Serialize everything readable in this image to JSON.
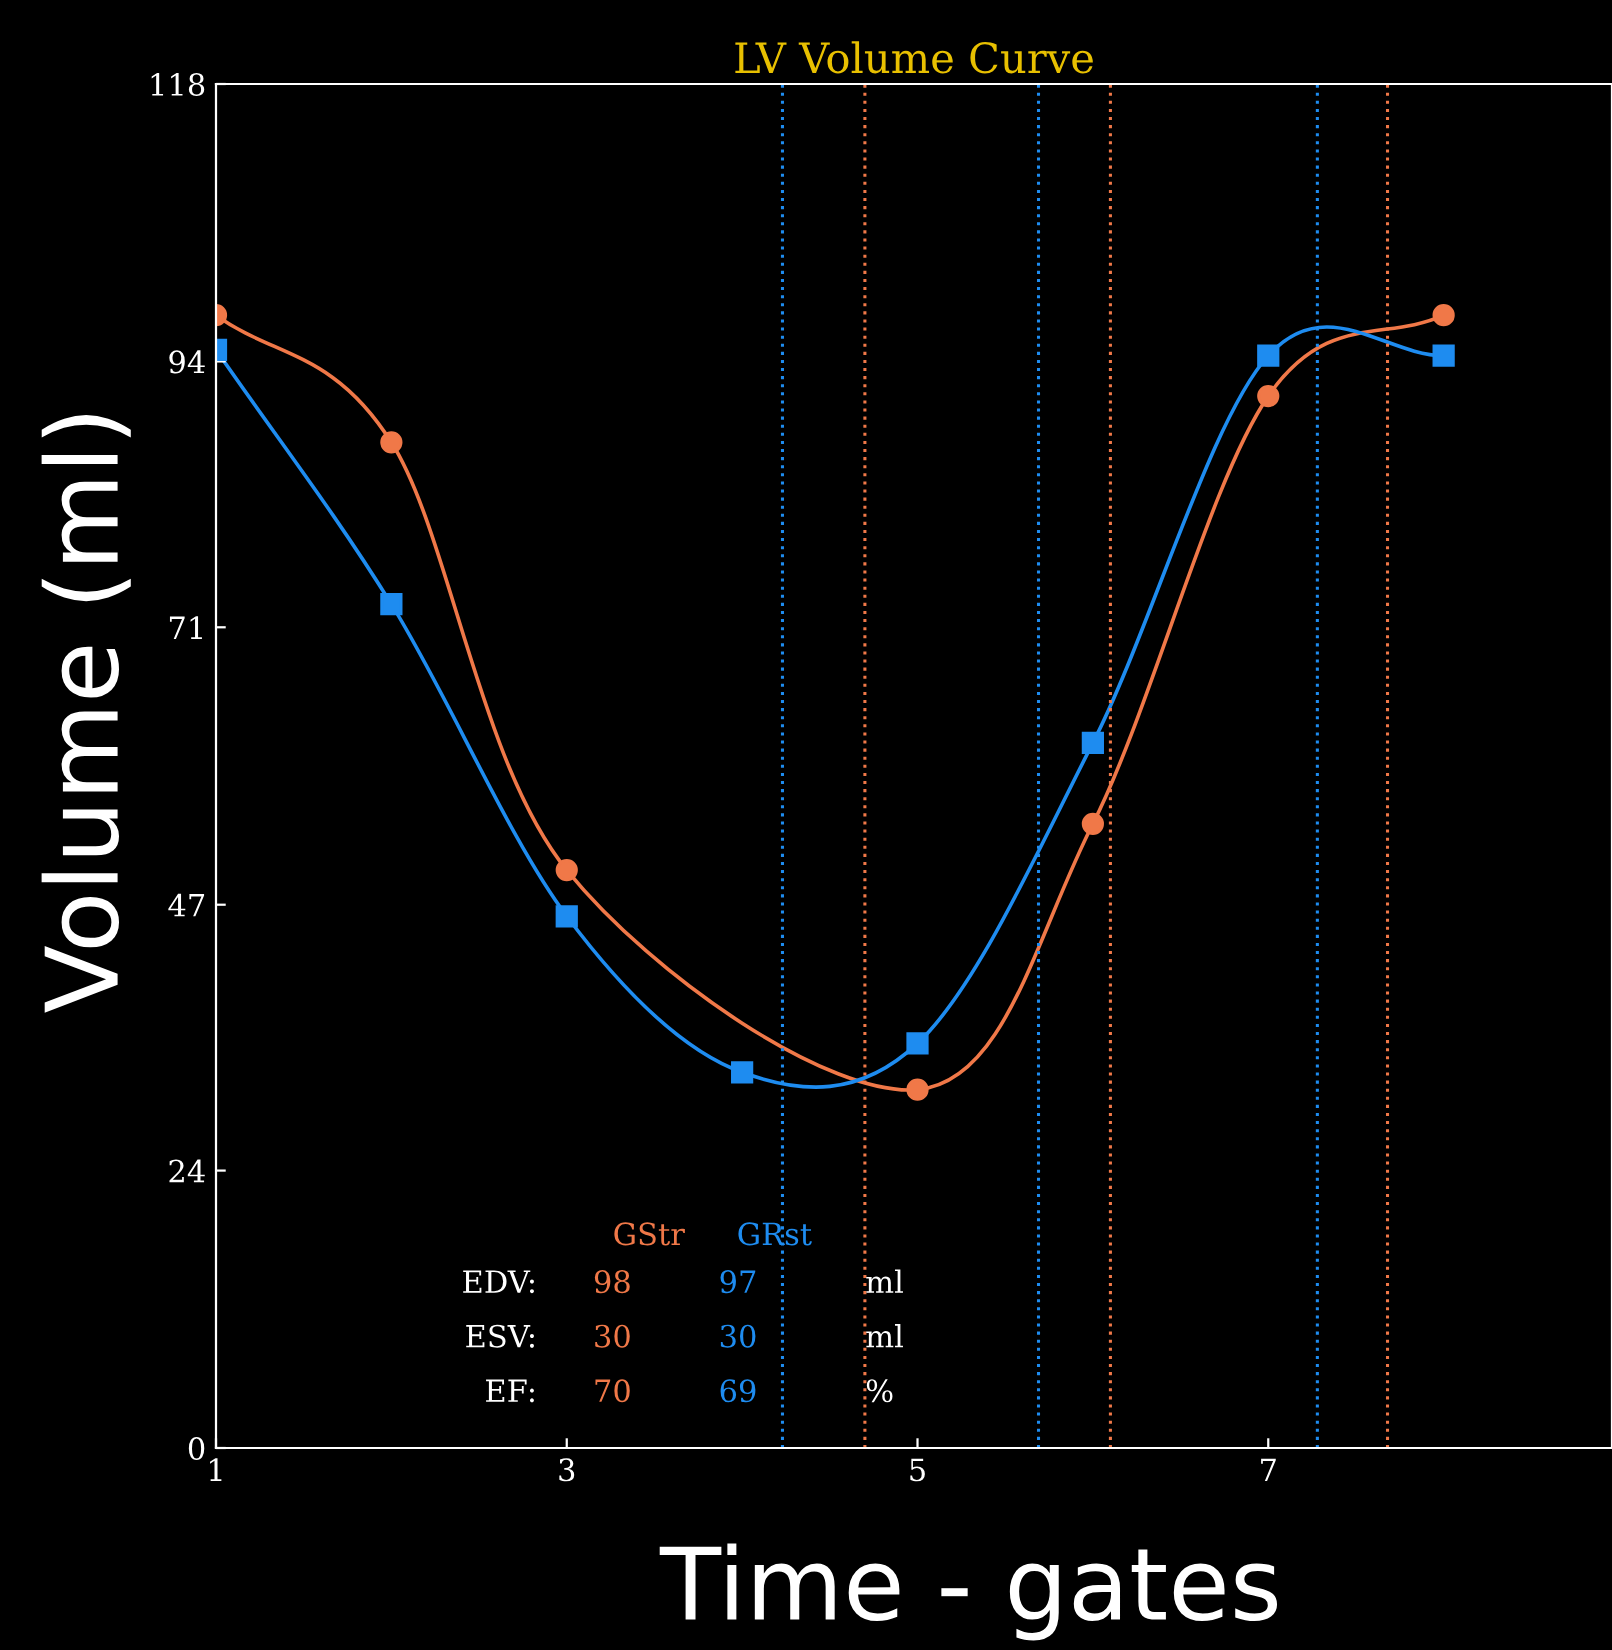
{
  "chart_data": {
    "type": "line",
    "title": "LV Volume Curve",
    "xlabel": "Time - gates",
    "ylabel": "Volume (ml)",
    "x": [
      1,
      2,
      3,
      4,
      5,
      6,
      7,
      8
    ],
    "series": [
      {
        "name": "GStr",
        "color": "#f07848",
        "marker": "circle",
        "values": [
          98,
          87,
          50,
          null,
          31,
          54,
          91,
          98
        ]
      },
      {
        "name": "GRst",
        "color": "#1e8cf0",
        "marker": "square",
        "values": [
          95,
          73,
          46,
          32.5,
          35,
          61,
          94.5,
          94.5
        ]
      }
    ],
    "xlim": [
      1,
      8.96
    ],
    "xticks": [
      1,
      3,
      5,
      7
    ],
    "ylim": [
      0,
      118
    ],
    "yticks": [
      0,
      24,
      47,
      71,
      94,
      118
    ],
    "grid": false,
    "legend": false,
    "line_style": "solid",
    "ref_lines": [
      {
        "axis": "x",
        "value": 4.23,
        "color": "#1e8cf0",
        "line_style": "dotted"
      },
      {
        "axis": "x",
        "value": 4.7,
        "color": "#f07848",
        "line_style": "dotted"
      },
      {
        "axis": "x",
        "value": 5.69,
        "color": "#1e8cf0",
        "line_style": "dotted"
      },
      {
        "axis": "x",
        "value": 6.1,
        "color": "#f07848",
        "line_style": "dotted"
      },
      {
        "axis": "x",
        "value": 7.28,
        "color": "#1e8cf0",
        "line_style": "dotted"
      },
      {
        "axis": "x",
        "value": 7.68,
        "color": "#f07848",
        "line_style": "dotted"
      }
    ],
    "annotations": [
      "EDV:",
      "98",
      "97",
      "ml",
      "ESV:",
      "30",
      "30",
      "ml",
      "EF:",
      "70",
      "69",
      "%"
    ]
  }
}
